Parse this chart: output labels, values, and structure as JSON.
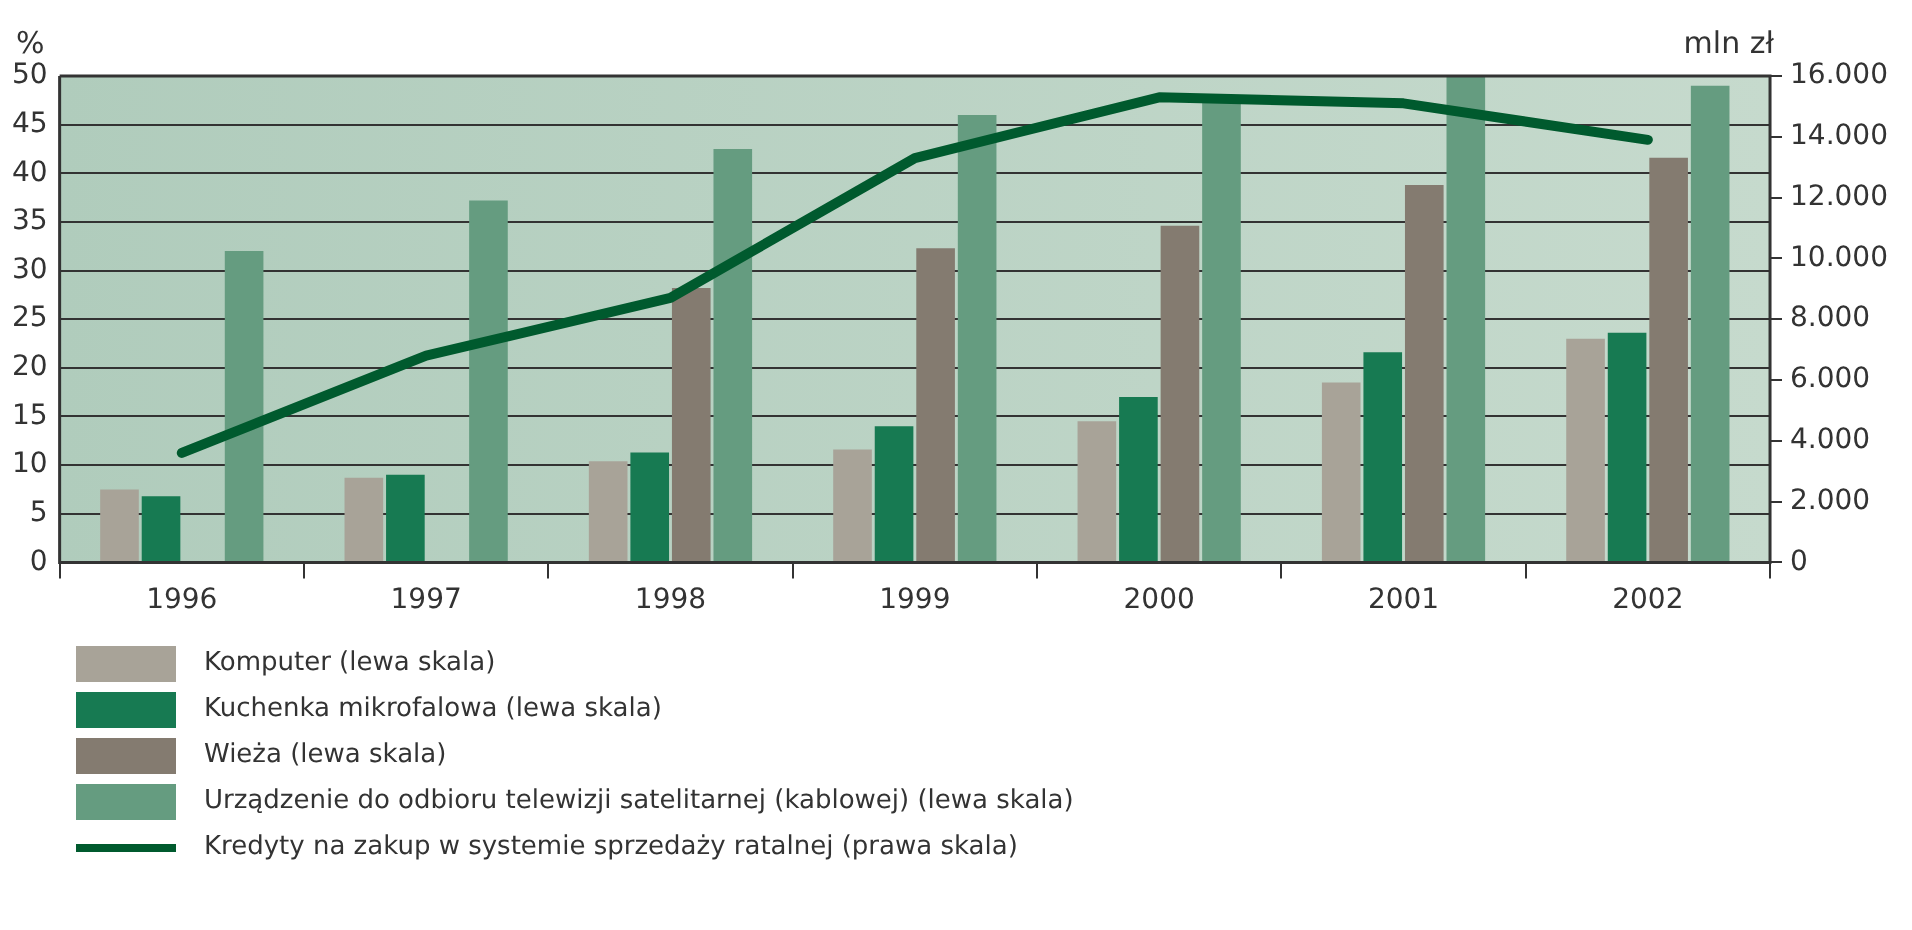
{
  "chart_data": {
    "type": "bar",
    "ylabel": "%",
    "y2label": "mln zł",
    "categories": [
      "1996",
      "1997",
      "1998",
      "1999",
      "2000",
      "2001",
      "2002"
    ],
    "series": [
      {
        "name": "Komputer (lewa skala)",
        "color": "#a8a398",
        "values": [
          7.5,
          8.7,
          10.4,
          11.6,
          14.5,
          18.5,
          23
        ]
      },
      {
        "name": "Kuchenka mikrofalowa (lewa skala)",
        "color": "#177a52",
        "values": [
          6.8,
          9,
          11.3,
          14,
          17,
          21.6,
          23.6
        ]
      },
      {
        "name": "Wieża (lewa skala)",
        "color": "#847b70",
        "values": [
          null,
          null,
          28.2,
          32.3,
          34.6,
          38.8,
          41.6
        ]
      },
      {
        "name": "Urządzenie do odbioru telewizji satelitarnej (kablowej) (lewa skala)",
        "color": "#659c80",
        "values": [
          32,
          37.2,
          42.5,
          46,
          47.8,
          50,
          49
        ]
      },
      {
        "name": "Kredyty na zakup w systemie sprzedaży ratalnej (prawa skala)",
        "color": "#005a2e",
        "type": "line",
        "axis": "y2",
        "values": [
          3600,
          6800,
          8700,
          13300,
          15300,
          15100,
          13900
        ]
      }
    ],
    "ylim": [
      0,
      50
    ],
    "yticks": [
      0,
      5,
      10,
      15,
      20,
      25,
      30,
      35,
      40,
      45,
      50
    ],
    "y2lim": [
      0,
      16000
    ],
    "y2ticks": [
      0,
      {
        "value": 2000,
        "label": "2.000"
      },
      {
        "value": 4000,
        "label": "4.000"
      },
      {
        "value": 6000,
        "label": "6.000"
      },
      {
        "value": 8000,
        "label": "8.000"
      },
      {
        "value": 10000,
        "label": "10.000"
      },
      {
        "value": 12000,
        "label": "12.000"
      },
      {
        "value": 14000,
        "label": "14.000"
      },
      {
        "value": 16000,
        "label": "16.000"
      }
    ],
    "grid": "y",
    "legend": "bottom",
    "marker": "none",
    "line_style": "solid"
  }
}
